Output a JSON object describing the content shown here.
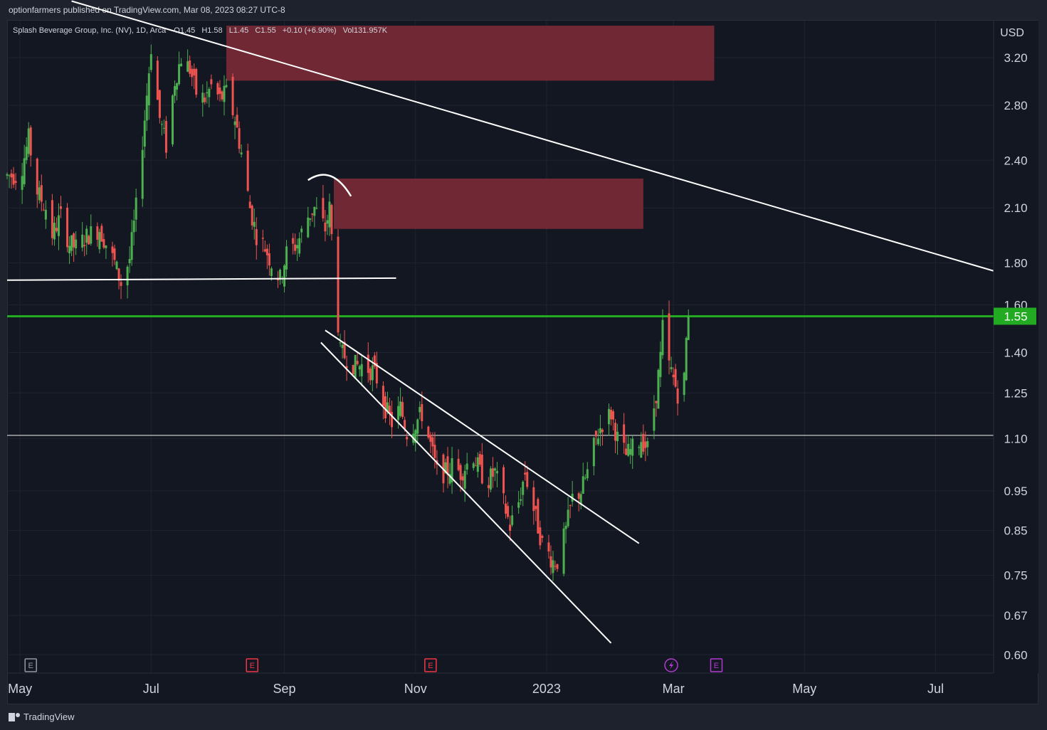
{
  "header": {
    "published": "optionfarmers published on TradingView.com, Mar 08, 2023 08:27 UTC-8"
  },
  "legend": {
    "symbol": "Splash Beverage Group, Inc. (NV), 1D, Arca",
    "open": "O1.45",
    "high": "H1.58",
    "low": "L1.45",
    "close": "C1.55",
    "change": "+0.10 (+6.90%)",
    "volume": "Vol131.957K"
  },
  "footer": {
    "brand": "TradingView"
  },
  "colors": {
    "background": "#131722",
    "grid": "#1f2330",
    "up": "#26a69a",
    "up_alt": "#4caf50",
    "down": "#ef5350",
    "zone": "#7b2a36",
    "price_line": "#22ab22",
    "trendline": "#ffffff",
    "event_earnings": "#f23645",
    "event_dividend": "#b23ad1",
    "axis_text": "#d1d4dc"
  },
  "chart_data": {
    "type": "candlestick",
    "currency": "USD",
    "y_scale": "log",
    "y_range": [
      0.57,
      3.55
    ],
    "y_ticks": [
      "3.20",
      "2.80",
      "2.40",
      "2.10",
      "1.80",
      "1.60",
      "1.40",
      "1.25",
      "1.10",
      "0.95",
      "0.85",
      "0.75",
      "0.67",
      "0.60"
    ],
    "x_range": [
      "2022-04-25",
      "2023-07-28"
    ],
    "x_ticks": [
      {
        "label": "May",
        "date": "2022-05-01"
      },
      {
        "label": "Jul",
        "date": "2022-07-01"
      },
      {
        "label": "Sep",
        "date": "2022-09-01"
      },
      {
        "label": "Nov",
        "date": "2022-11-01"
      },
      {
        "label": "2023",
        "date": "2023-01-01"
      },
      {
        "label": "Mar",
        "date": "2023-03-01"
      },
      {
        "label": "May",
        "date": "2023-05-01"
      },
      {
        "label": "Jul",
        "date": "2023-07-01"
      }
    ],
    "last_price": "1.55",
    "close_path": [
      [
        "2022-04-25",
        2.3
      ],
      [
        "2022-05-01",
        2.3
      ],
      [
        "2022-05-05",
        2.55
      ],
      [
        "2022-05-09",
        2.2
      ],
      [
        "2022-05-13",
        2.1
      ],
      [
        "2022-05-16",
        1.95
      ],
      [
        "2022-05-20",
        2.05
      ],
      [
        "2022-05-24",
        1.9
      ],
      [
        "2022-05-27",
        1.88
      ],
      [
        "2022-06-02",
        1.95
      ],
      [
        "2022-06-07",
        1.98
      ],
      [
        "2022-06-10",
        1.9
      ],
      [
        "2022-06-14",
        1.8
      ],
      [
        "2022-06-17",
        1.7
      ],
      [
        "2022-06-21",
        1.82
      ],
      [
        "2022-06-24",
        2.1
      ],
      [
        "2022-06-28",
        2.7
      ],
      [
        "2022-07-01",
        3.3
      ],
      [
        "2022-07-05",
        2.7
      ],
      [
        "2022-07-08",
        2.5
      ],
      [
        "2022-07-12",
        3.0
      ],
      [
        "2022-07-15",
        3.2
      ],
      [
        "2022-07-19",
        3.1
      ],
      [
        "2022-07-22",
        2.9
      ],
      [
        "2022-07-26",
        2.85
      ],
      [
        "2022-07-29",
        2.95
      ],
      [
        "2022-08-02",
        2.85
      ],
      [
        "2022-08-05",
        2.9
      ],
      [
        "2022-08-09",
        2.7
      ],
      [
        "2022-08-12",
        2.45
      ],
      [
        "2022-08-16",
        2.1
      ],
      [
        "2022-08-19",
        1.95
      ],
      [
        "2022-08-23",
        1.88
      ],
      [
        "2022-08-26",
        1.8
      ],
      [
        "2022-08-30",
        1.72
      ],
      [
        "2022-09-02",
        1.85
      ],
      [
        "2022-09-07",
        1.9
      ],
      [
        "2022-09-12",
        2.05
      ],
      [
        "2022-09-15",
        2.1
      ],
      [
        "2022-09-20",
        1.98
      ],
      [
        "2022-09-22",
        2.1
      ],
      [
        "2022-09-27",
        1.4
      ],
      [
        "2022-09-30",
        1.38
      ],
      [
        "2022-10-04",
        1.35
      ],
      [
        "2022-10-07",
        1.35
      ],
      [
        "2022-10-12",
        1.33
      ],
      [
        "2022-10-14",
        1.3
      ],
      [
        "2022-10-18",
        1.2
      ],
      [
        "2022-10-21",
        1.15
      ],
      [
        "2022-10-25",
        1.2
      ],
      [
        "2022-10-28",
        1.12
      ],
      [
        "2022-11-01",
        1.15
      ],
      [
        "2022-11-04",
        1.18
      ],
      [
        "2022-11-08",
        1.08
      ],
      [
        "2022-11-11",
        1.0
      ],
      [
        "2022-11-15",
        1.0
      ],
      [
        "2022-11-18",
        1.02
      ],
      [
        "2022-11-22",
        1.0
      ],
      [
        "2022-11-28",
        1.05
      ],
      [
        "2022-12-01",
        1.0
      ],
      [
        "2022-12-05",
        0.98
      ],
      [
        "2022-12-08",
        1.0
      ],
      [
        "2022-12-12",
        0.92
      ],
      [
        "2022-12-15",
        0.86
      ],
      [
        "2022-12-19",
        0.92
      ],
      [
        "2022-12-22",
        1.0
      ],
      [
        "2022-12-27",
        0.88
      ],
      [
        "2022-12-30",
        0.82
      ],
      [
        "2023-01-04",
        0.78
      ],
      [
        "2023-01-06",
        0.78
      ],
      [
        "2023-01-10",
        0.85
      ],
      [
        "2023-01-13",
        0.93
      ],
      [
        "2023-01-17",
        0.95
      ],
      [
        "2023-01-20",
        1.0
      ],
      [
        "2023-01-24",
        1.1
      ],
      [
        "2023-01-27",
        1.15
      ],
      [
        "2023-01-31",
        1.18
      ],
      [
        "2023-02-03",
        1.1
      ],
      [
        "2023-02-07",
        1.05
      ],
      [
        "2023-02-10",
        1.07
      ],
      [
        "2023-02-14",
        1.1
      ],
      [
        "2023-02-17",
        1.07
      ],
      [
        "2023-02-21",
        1.25
      ],
      [
        "2023-02-23",
        1.38
      ],
      [
        "2023-02-24",
        1.5
      ],
      [
        "2023-02-27",
        1.35
      ],
      [
        "2023-03-01",
        1.3
      ],
      [
        "2023-03-03",
        1.25
      ],
      [
        "2023-03-06",
        1.3
      ],
      [
        "2023-03-07",
        1.45
      ],
      [
        "2023-03-08",
        1.55
      ]
    ],
    "annotations": {
      "resistance_zones": [
        {
          "from": "2022-08-05",
          "to": "2023-03-20",
          "low": 3.0,
          "high": 3.5
        },
        {
          "from": "2022-09-24",
          "to": "2023-02-15",
          "low": 1.98,
          "high": 2.28
        }
      ],
      "horizontal_lines": [
        {
          "price": 1.11,
          "from": "2022-04-25",
          "to": "2023-07-28",
          "color": "#c8c8c8"
        },
        {
          "price": 1.55,
          "from": "2022-04-25",
          "to": "2023-07-28",
          "color": "#22ab22"
        }
      ],
      "trendlines": [
        {
          "p1": [
            "2022-04-25",
            1.715
          ],
          "p2": [
            "2022-10-23",
            1.725
          ]
        },
        {
          "p1": [
            "2022-05-25",
            3.75
          ],
          "p2": [
            "2023-07-28",
            1.76
          ]
        },
        {
          "p1": [
            "2022-09-20",
            1.49
          ],
          "p2": [
            "2023-02-13",
            0.82
          ]
        },
        {
          "p1": [
            "2022-09-18",
            1.44
          ],
          "p2": [
            "2023-01-31",
            0.62
          ]
        }
      ],
      "arc": {
        "from": [
          "2022-09-12",
          2.27
        ],
        "peak": [
          "2022-09-23",
          2.31
        ],
        "to": [
          "2022-10-02",
          2.17
        ]
      }
    },
    "events": [
      {
        "date": "2022-05-06",
        "type": "E",
        "style": "earnings-past"
      },
      {
        "date": "2022-08-17",
        "type": "E",
        "style": "earnings"
      },
      {
        "date": "2022-11-08",
        "type": "E",
        "style": "earnings"
      },
      {
        "date": "2023-02-28",
        "type": "split",
        "style": "flash"
      },
      {
        "date": "2023-03-21",
        "type": "E",
        "style": "earnings-future"
      }
    ]
  }
}
